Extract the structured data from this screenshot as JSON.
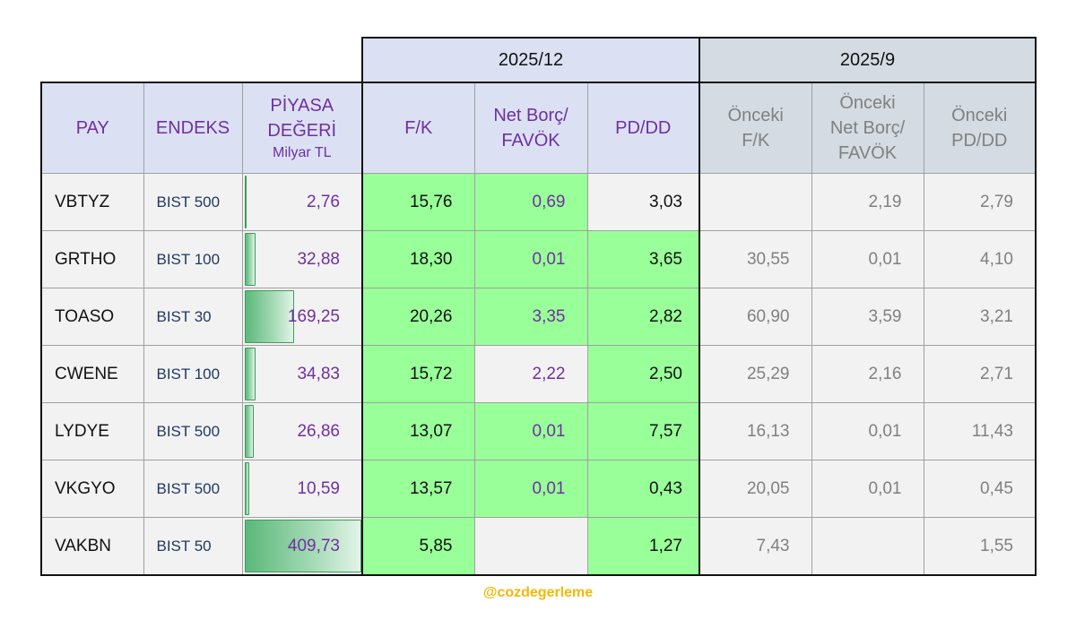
{
  "periods": {
    "current": "2025/12",
    "previous": "2025/9"
  },
  "headers": {
    "pay": "PAY",
    "endeks": "ENDEKS",
    "piyasa_line1": "PİYASA",
    "piyasa_line2": "DEĞERİ",
    "piyasa_unit": "Milyar TL",
    "fk": "F/K",
    "netborc_line1": "Net Borç/",
    "netborc_line2": "FAVÖK",
    "pddd": "PD/DD",
    "prev_fk_line1": "Önceki",
    "prev_fk_line2": "F/K",
    "prev_nb_line1": "Önceki",
    "prev_nb_line2": "Net Borç/",
    "prev_nb_line3": "FAVÖK",
    "prev_pd_line1": "Önceki",
    "prev_pd_line2": "PD/DD"
  },
  "rows": [
    {
      "pay": "VBTYZ",
      "endeks": "BIST 500",
      "mcap": "2,76",
      "mcap_value": 2.76,
      "fk": "15,76",
      "nb": "0,69",
      "pd": "3,03",
      "prev_fk": "",
      "prev_nb": "2,19",
      "prev_pd": "2,79",
      "green_fk": true,
      "green_nb": true,
      "green_pd": false
    },
    {
      "pay": "GRTHO",
      "endeks": "BIST 100",
      "mcap": "32,88",
      "mcap_value": 32.88,
      "fk": "18,30",
      "nb": "0,01",
      "pd": "3,65",
      "prev_fk": "30,55",
      "prev_nb": "0,01",
      "prev_pd": "4,10",
      "green_fk": true,
      "green_nb": true,
      "green_pd": true
    },
    {
      "pay": "TOASO",
      "endeks": "BIST 30",
      "mcap": "169,25",
      "mcap_value": 169.25,
      "fk": "20,26",
      "nb": "3,35",
      "pd": "2,82",
      "prev_fk": "60,90",
      "prev_nb": "3,59",
      "prev_pd": "3,21",
      "green_fk": true,
      "green_nb": true,
      "green_pd": true
    },
    {
      "pay": "CWENE",
      "endeks": "BIST 100",
      "mcap": "34,83",
      "mcap_value": 34.83,
      "fk": "15,72",
      "nb": "2,22",
      "pd": "2,50",
      "prev_fk": "25,29",
      "prev_nb": "2,16",
      "prev_pd": "2,71",
      "green_fk": true,
      "green_nb": false,
      "green_pd": true
    },
    {
      "pay": "LYDYE",
      "endeks": "BIST 500",
      "mcap": "26,86",
      "mcap_value": 26.86,
      "fk": "13,07",
      "nb": "0,01",
      "pd": "7,57",
      "prev_fk": "16,13",
      "prev_nb": "0,01",
      "prev_pd": "11,43",
      "green_fk": true,
      "green_nb": true,
      "green_pd": true
    },
    {
      "pay": "VKGYO",
      "endeks": "BIST 500",
      "mcap": "10,59",
      "mcap_value": 10.59,
      "fk": "13,57",
      "nb": "0,01",
      "pd": "0,43",
      "prev_fk": "20,05",
      "prev_nb": "0,01",
      "prev_pd": "0,45",
      "green_fk": true,
      "green_nb": true,
      "green_pd": true
    },
    {
      "pay": "VAKBN",
      "endeks": "BIST 50",
      "mcap": "409,73",
      "mcap_value": 409.73,
      "fk": "5,85",
      "nb": "",
      "pd": "1,27",
      "prev_fk": "7,43",
      "prev_nb": "",
      "prev_pd": "1,55",
      "green_fk": true,
      "green_nb": false,
      "green_pd": true
    }
  ],
  "mcap_bar_max": 409.73,
  "credit": "@cozdegerleme",
  "colors": {
    "highlight_green": "#99ff99",
    "header_current": "#dbe1f3",
    "header_previous": "#d4dbe3",
    "purple_text": "#7030a0",
    "credit": "#f5b800"
  }
}
